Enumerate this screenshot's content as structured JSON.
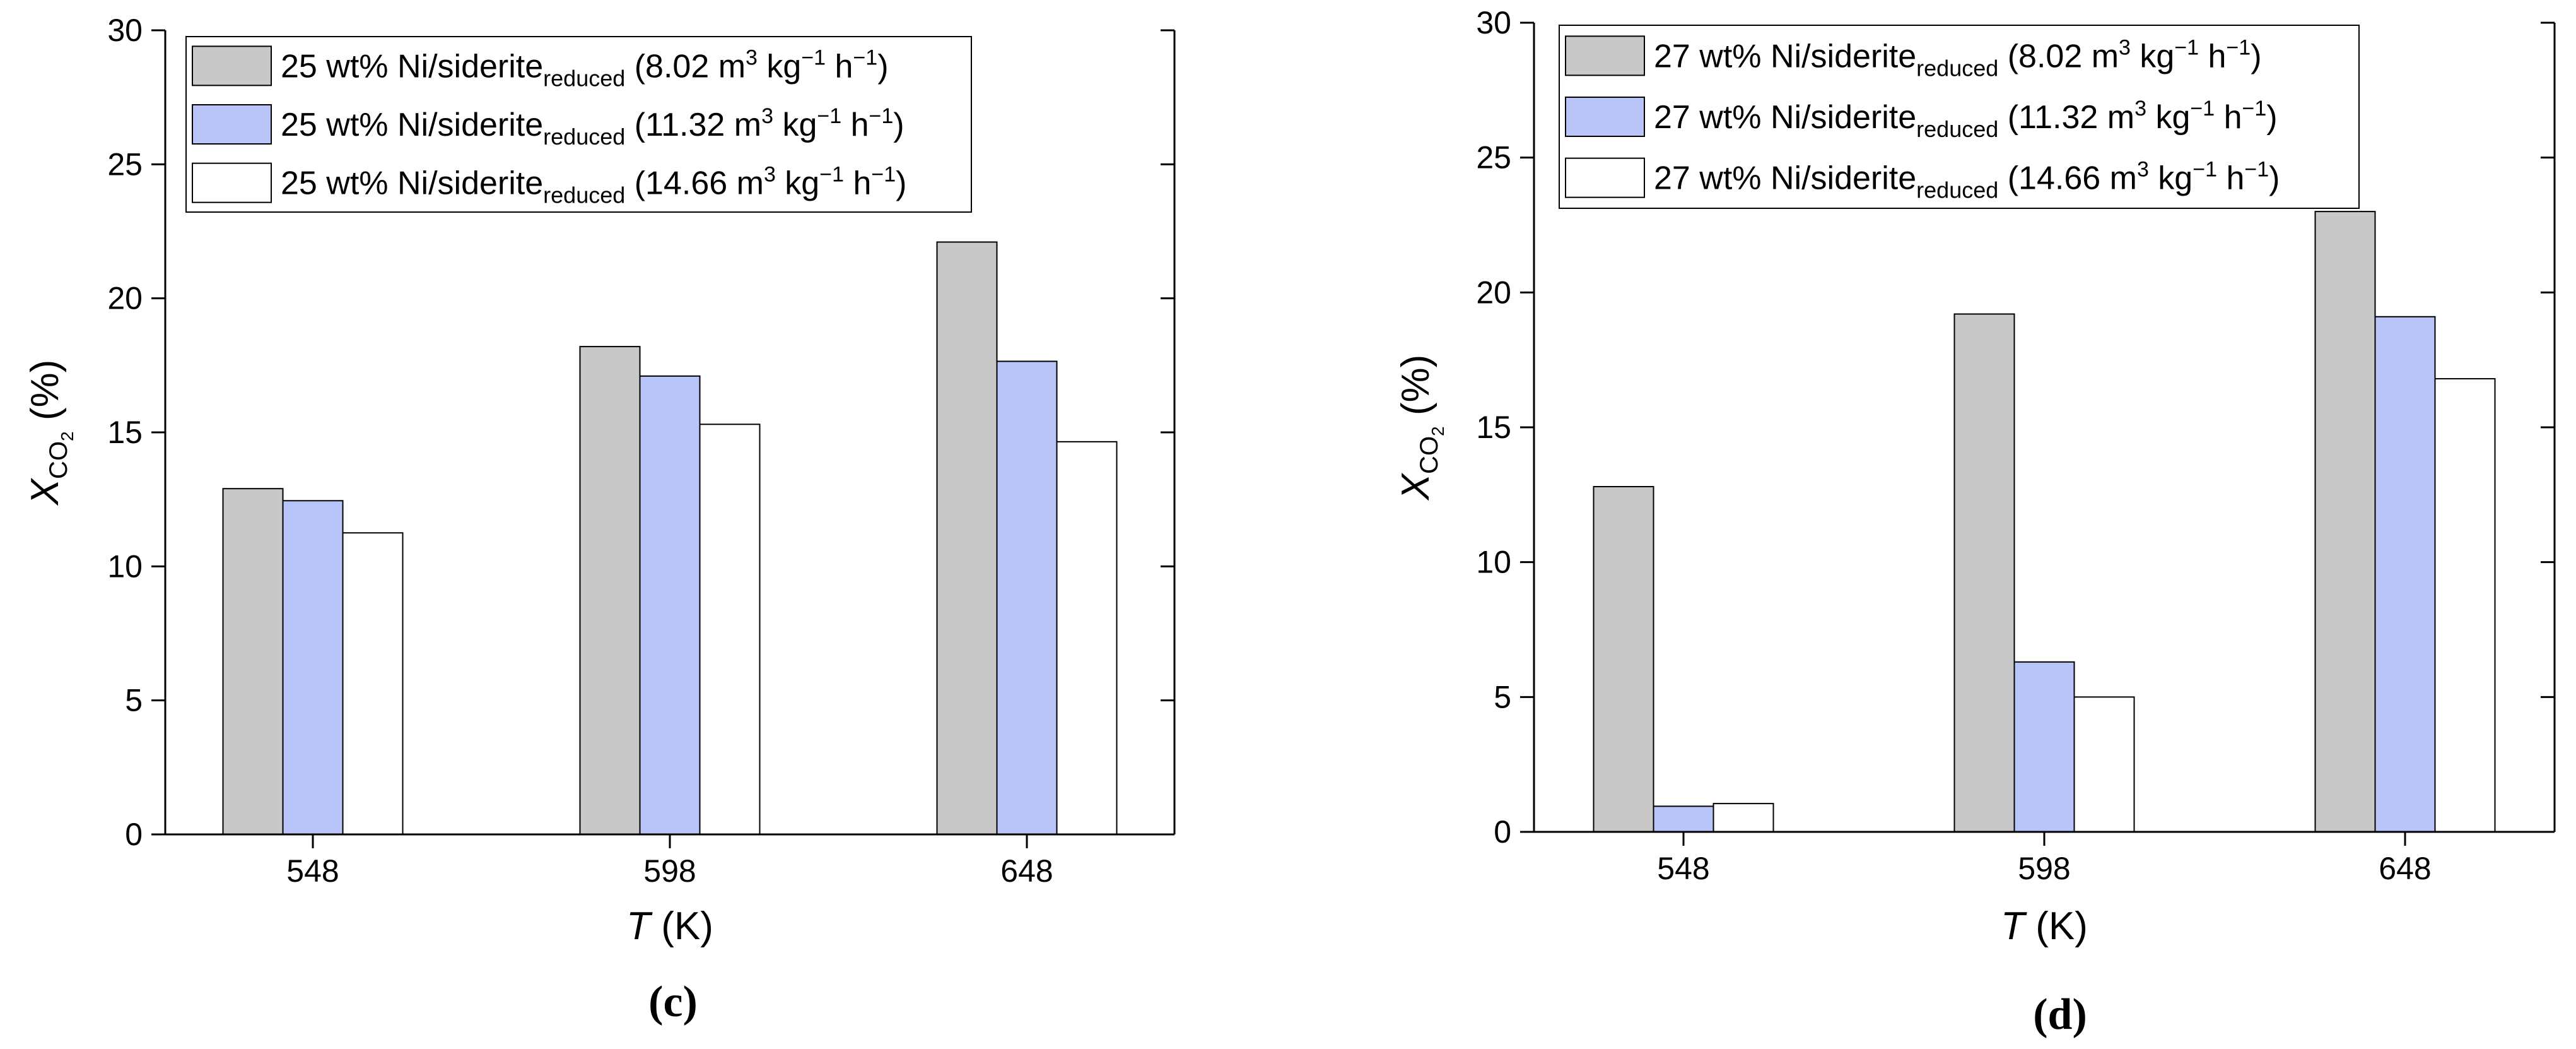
{
  "colors": {
    "series_1": "#c8c8c8",
    "series_2": "#b9c4f9",
    "series_3": "#ffffff",
    "axis": "#000000"
  },
  "chart_data": [
    {
      "type": "bar",
      "panel_label": "(c)",
      "categories": [
        "548",
        "598",
        "648"
      ],
      "series": [
        {
          "name": "25 wt% Ni/siderite reduced (8.02 m3 kg−1 h−1)",
          "catalyst": "25 wt% Ni/siderite",
          "subscript": "reduced",
          "rate": "8.02",
          "values": [
            12.9,
            18.2,
            22.1
          ]
        },
        {
          "name": "25 wt% Ni/siderite reduced (11.32 m3 kg−1 h−1)",
          "catalyst": "25 wt% Ni/siderite",
          "subscript": "reduced",
          "rate": "11.32",
          "values": [
            12.45,
            17.1,
            17.65
          ]
        },
        {
          "name": "25 wt% Ni/siderite reduced (14.66 m3 kg−1 h−1)",
          "catalyst": "25 wt% Ni/siderite",
          "subscript": "reduced",
          "rate": "14.66",
          "values": [
            11.25,
            15.3,
            14.65
          ]
        }
      ],
      "ylim": [
        0,
        30
      ],
      "yticks": [
        "0",
        "5",
        "10",
        "15",
        "20",
        "25",
        "30"
      ],
      "xlabel": {
        "symbol": "T",
        "unit": "(K)"
      },
      "ylabel": {
        "symbol": "X",
        "subscript": "CO",
        "subsub": "2",
        "unit": "(%)"
      },
      "legend": "top-left"
    },
    {
      "type": "bar",
      "panel_label": "(d)",
      "categories": [
        "548",
        "598",
        "648"
      ],
      "series": [
        {
          "name": "27 wt% Ni/siderite reduced (8.02 m3 kg−1 h−1)",
          "catalyst": "27 wt% Ni/siderite",
          "subscript": "reduced",
          "rate": "8.02",
          "values": [
            12.8,
            19.2,
            23.0
          ]
        },
        {
          "name": "27 wt% Ni/siderite reduced (11.32 m3 kg−1 h−1)",
          "catalyst": "27 wt% Ni/siderite",
          "subscript": "reduced",
          "rate": "11.32",
          "values": [
            0.95,
            6.3,
            19.1
          ]
        },
        {
          "name": "27 wt% Ni/siderite reduced (14.66 m3 kg−1 h−1)",
          "catalyst": "27 wt% Ni/siderite",
          "subscript": "reduced",
          "rate": "14.66",
          "values": [
            1.05,
            5.0,
            16.8
          ]
        }
      ],
      "ylim": [
        0,
        30
      ],
      "yticks": [
        "0",
        "5",
        "10",
        "15",
        "20",
        "25",
        "30"
      ],
      "xlabel": {
        "symbol": "T",
        "unit": "(K)"
      },
      "ylabel": {
        "symbol": "X",
        "subscript": "CO",
        "subsub": "2",
        "unit": "(%)"
      },
      "legend": "top-left"
    }
  ]
}
